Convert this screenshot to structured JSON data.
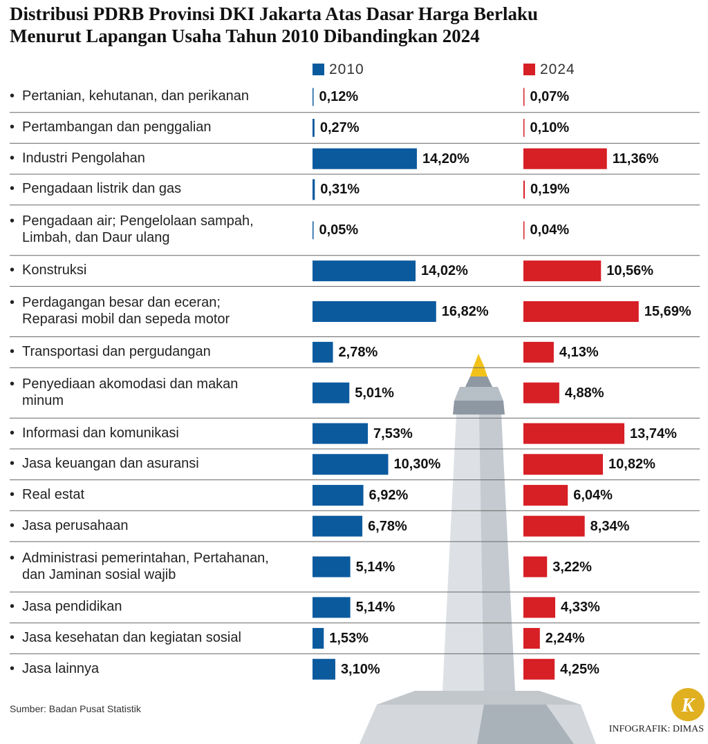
{
  "chart_data": {
    "type": "bar",
    "title": "Distribusi PDRB Provinsi DKI Jakarta Atas Dasar Harga Berlaku\nMenurut Lapangan Usaha Tahun 2010 Dibandingkan 2024",
    "categories": [
      "Pertanian, kehutanan, dan perikanan",
      "Pertambangan dan penggalian",
      "Industri Pengolahan",
      "Pengadaan listrik dan gas",
      "Pengadaan air; Pengelolaan sampah,\nLimbah, dan Daur ulang",
      "Konstruksi",
      "Perdagangan besar dan eceran;\nReparasi mobil dan sepeda motor",
      "Transportasi dan pergudangan",
      "Penyediaan akomodasi dan makan\nminum",
      "Informasi dan komunikasi",
      "Jasa keuangan dan asuransi",
      "Real estat",
      "Jasa perusahaan",
      "Administrasi pemerintahan, Pertahanan,\ndan Jaminan sosial wajib",
      "Jasa pendidikan",
      "Jasa kesehatan dan kegiatan sosial",
      "Jasa lainnya"
    ],
    "series": [
      {
        "name": "2010",
        "color": "#0b5a9e",
        "values": [
          0.12,
          0.27,
          14.2,
          0.31,
          0.05,
          14.02,
          16.82,
          2.78,
          5.01,
          7.53,
          10.3,
          6.92,
          6.78,
          5.14,
          5.14,
          1.53,
          3.1
        ],
        "value_labels": [
          "0,12%",
          "0,27%",
          "14,20%",
          "0,31%",
          "0,05%",
          "14,02%",
          "16,82%",
          "2,78%",
          "5,01%",
          "7,53%",
          "10,30%",
          "6,92%",
          "6,78%",
          "5,14%",
          "5,14%",
          "1,53%",
          "3,10%"
        ]
      },
      {
        "name": "2024",
        "color": "#d71f26",
        "values": [
          0.07,
          0.1,
          11.36,
          0.19,
          0.04,
          10.56,
          15.69,
          4.13,
          4.88,
          13.74,
          10.82,
          6.04,
          8.34,
          3.22,
          4.33,
          2.24,
          4.25
        ],
        "value_labels": [
          "0,07%",
          "0,10%",
          "11,36%",
          "0,19%",
          "0,04%",
          "10,56%",
          "15,69%",
          "4,13%",
          "4,88%",
          "13,74%",
          "10,82%",
          "6,04%",
          "8,34%",
          "3,22%",
          "4,33%",
          "2,24%",
          "4,25%"
        ]
      }
    ],
    "source": "Sumber: Badan Pusat Statistik",
    "credit": "INFOGRAFIK: DIMAS",
    "logo": "K"
  }
}
